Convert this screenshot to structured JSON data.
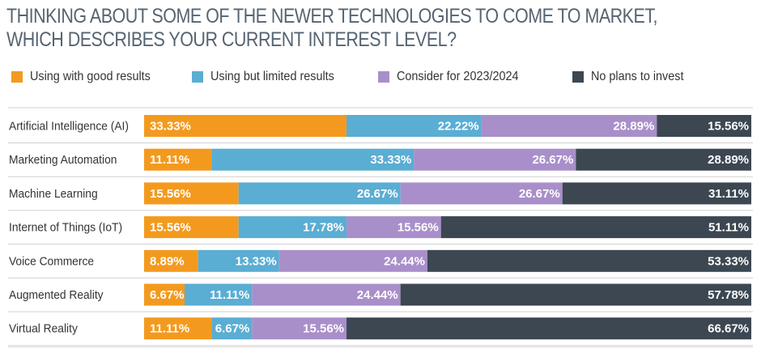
{
  "title": {
    "line1": "THINKING ABOUT SOME OF THE NEWER TECHNOLOGIES TO COME TO MARKET,",
    "line2": "WHICH DESCRIBES YOUR CURRENT INTEREST LEVEL?"
  },
  "chart_data": {
    "type": "bar",
    "orientation": "horizontal",
    "stacked": true,
    "title": "THINKING ABOUT SOME OF THE NEWER TECHNOLOGIES TO COME TO MARKET, WHICH DESCRIBES YOUR CURRENT INTEREST LEVEL?",
    "legend_position": "top",
    "value_format": "percent",
    "xlim": [
      0,
      100
    ],
    "categories": [
      "Artificial Intelligence (AI)",
      "Marketing Automation",
      "Machine Learning",
      "Internet of Things (IoT)",
      "Voice Commerce",
      "Augmented Reality",
      "Virtual Reality"
    ],
    "series": [
      {
        "name": "Using with good results",
        "color": "#f39a1e",
        "values": [
          33.33,
          11.11,
          15.56,
          15.56,
          8.89,
          6.67,
          11.11
        ]
      },
      {
        "name": "Using but limited results",
        "color": "#5aadd3",
        "values": [
          22.22,
          33.33,
          26.67,
          17.78,
          13.33,
          11.11,
          6.67
        ]
      },
      {
        "name": "Consider for 2023/2024",
        "color": "#a98fca",
        "values": [
          28.89,
          26.67,
          26.67,
          15.56,
          24.44,
          24.44,
          15.56
        ]
      },
      {
        "name": "No plans to invest",
        "color": "#3c4752",
        "values": [
          15.56,
          28.89,
          31.11,
          51.11,
          53.33,
          57.78,
          66.67
        ]
      }
    ]
  }
}
